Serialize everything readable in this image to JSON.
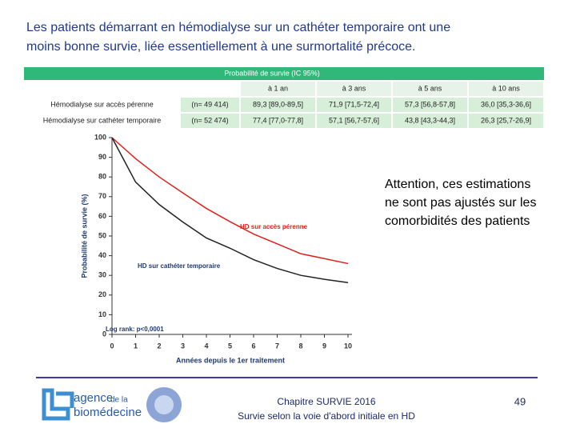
{
  "header": {
    "title": [
      "Les patients démarrant en hémodialyse sur un cathéter temporaire ont une",
      "moins bonne survie, liée essentiellement à une surmortalité précoce."
    ]
  },
  "table": {
    "band": "Probabilité de survie (IC 95%)",
    "columns": [
      "à 1 an",
      "à 3 ans",
      "à 5 ans",
      "à 10 ans"
    ],
    "rows": [
      [
        "Hémodialyse sur accès pérenne",
        "(n= 49 414)",
        "89,3 [89,0-89,5]",
        "71,9 [71,5-72,4]",
        "57,3 [56,8-57,8]",
        "36,0 [35,3-36,6]"
      ],
      [
        "Hémodialyse sur cathéter temporaire",
        "(n= 52 474)",
        "77,4 [77,0-77,8]",
        "57,1 [56,7-57,6]",
        "43,8 [43,3-44,3]",
        "26,3 [25,7-26,9]"
      ]
    ]
  },
  "chart_data": {
    "type": "line",
    "x": [
      0,
      1,
      2,
      3,
      4,
      5,
      6,
      7,
      8,
      9,
      10
    ],
    "series": [
      {
        "name": "HD sur accès pérenne",
        "color": "#e0201c",
        "values": [
          100,
          89.3,
          80,
          71.9,
          64,
          57.3,
          51,
          46,
          41,
          38.5,
          36
        ]
      },
      {
        "name": "HD sur cathéter temporaire",
        "color": "#222222",
        "values": [
          100,
          77.4,
          66,
          57.1,
          49,
          43.8,
          38,
          33.5,
          30,
          28,
          26.3
        ]
      }
    ],
    "xlim": [
      0,
      10
    ],
    "xticks": [
      0,
      1,
      2,
      3,
      4,
      5,
      6,
      7,
      8,
      9,
      10
    ],
    "ylim": [
      0,
      100
    ],
    "yticks": [
      0,
      10,
      20,
      30,
      40,
      50,
      60,
      70,
      80,
      90,
      100
    ],
    "xlabel": "Années depuis le 1er traitement",
    "ylabel": "Probabilité de survie (%)",
    "annotation": "Log rank: p<0,0001"
  },
  "note": [
    "Attention, ces estimations",
    "ne sont pas ajustés sur les",
    "comorbidités des patients"
  ],
  "footer": {
    "logo": [
      "agence",
      "de la",
      "biomédecine"
    ],
    "lines": [
      "Chapitre SURVIE 2016",
      "Survie selon la voie d'abord initiale en HD"
    ],
    "page": "49"
  }
}
